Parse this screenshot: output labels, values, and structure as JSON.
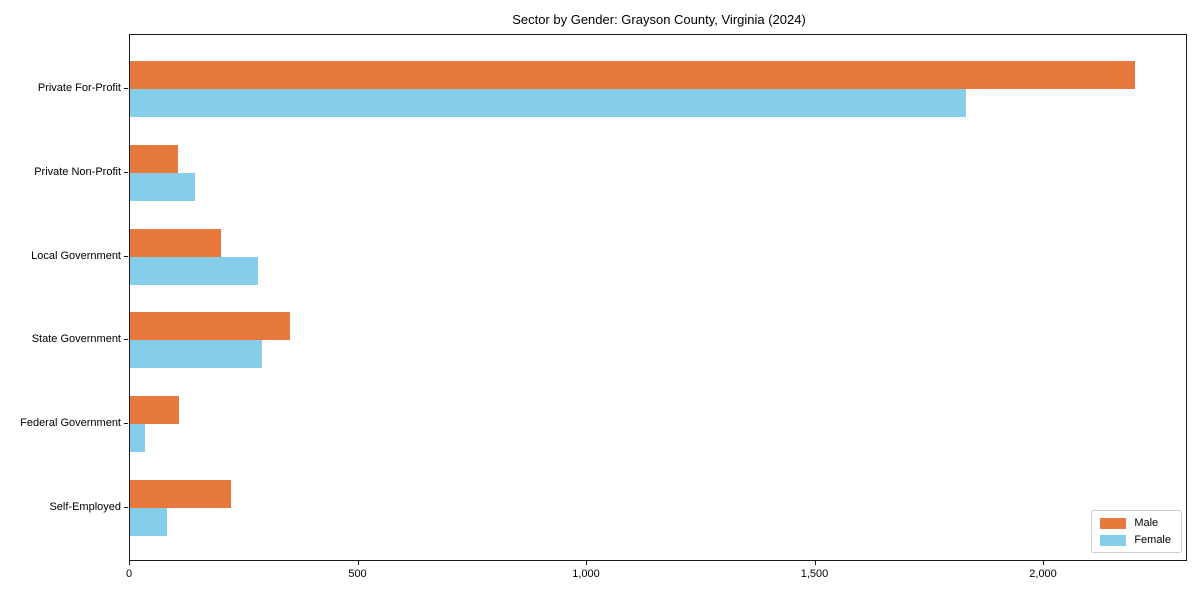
{
  "chart_data": {
    "type": "bar",
    "orientation": "horizontal",
    "title": "Sector by Gender: Grayson County, Virginia (2024)",
    "categories": [
      "Private For-Profit",
      "Private Non-Profit",
      "Local Government",
      "State Government",
      "Federal Government",
      "Self-Employed"
    ],
    "series": [
      {
        "name": "Male",
        "color": "#e8793d",
        "values": [
          2200,
          105,
          200,
          350,
          108,
          220
        ]
      },
      {
        "name": "Female",
        "color": "#86cde9",
        "values": [
          1830,
          142,
          280,
          288,
          33,
          81
        ]
      }
    ],
    "xlabel": "",
    "ylabel": "",
    "xlim": [
      0,
      2315
    ],
    "xticks": [
      0,
      500,
      1000,
      1500,
      2000
    ],
    "xtick_labels": [
      "0",
      "500",
      "1,000",
      "1,500",
      "2,000"
    ],
    "legend_position": "lower right",
    "grid": false,
    "background_color": "#ffffff",
    "spine_color": "#1a1a1a"
  }
}
